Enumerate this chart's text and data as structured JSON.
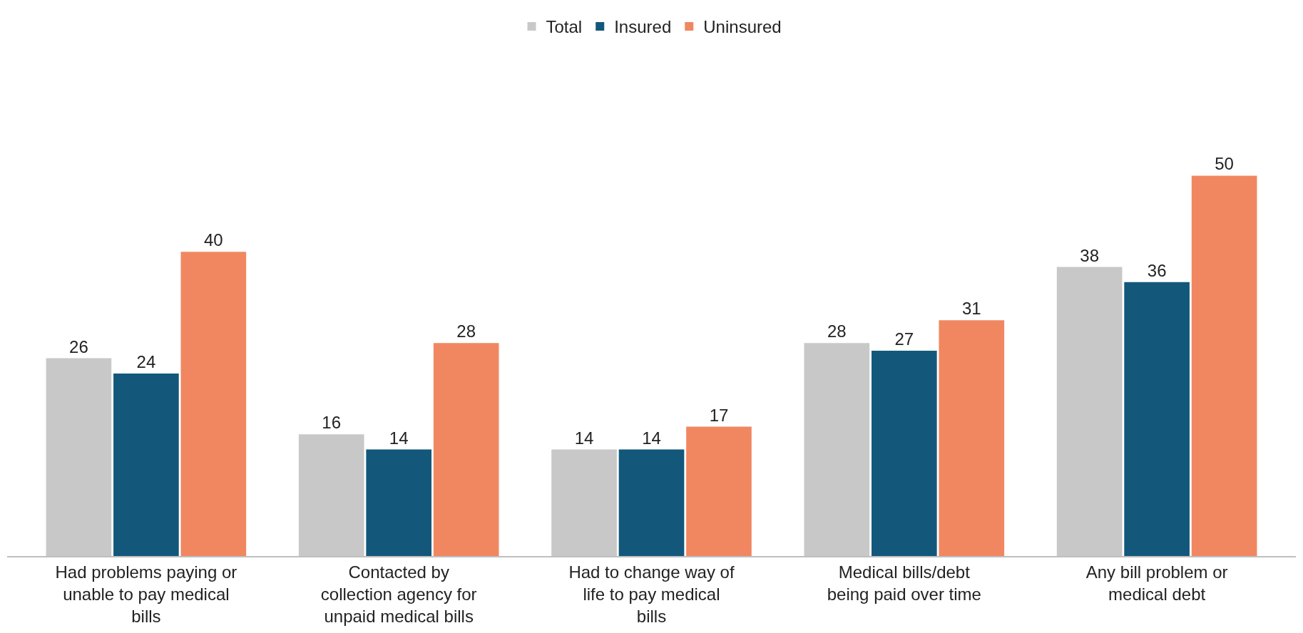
{
  "chart_data": {
    "type": "bar",
    "categories": [
      "Had problems paying or unable to pay medical bills",
      "Contacted by collection agency for unpaid medical bills",
      "Had to change way of life to pay medical bills",
      "Medical bills/debt being paid over time",
      "Any bill problem or medical debt"
    ],
    "series": [
      {
        "name": "Total",
        "color": "#c8c8c8",
        "values": [
          26,
          16,
          14,
          28,
          38
        ]
      },
      {
        "name": "Insured",
        "color": "#13587b",
        "values": [
          24,
          14,
          14,
          27,
          36
        ]
      },
      {
        "name": "Uninsured",
        "color": "#f08761",
        "values": [
          40,
          28,
          17,
          31,
          50
        ]
      }
    ],
    "data_labels": true,
    "legend": "top",
    "tick_labels": "x"
  }
}
